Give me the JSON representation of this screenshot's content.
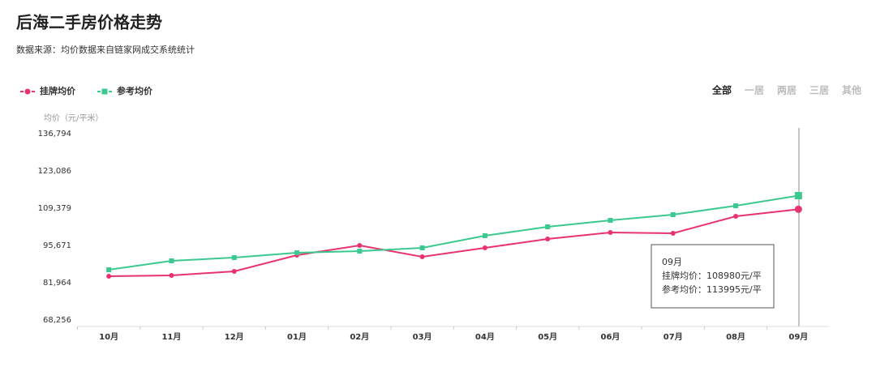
{
  "chart_data": {
    "type": "line",
    "title": "后海二手房价格走势",
    "subtitle": "数据来源：均价数据来自链家网成交系统统计",
    "y_label": "均价（元/平米）",
    "tabs": [
      "全部",
      "一居",
      "两居",
      "三居",
      "其他"
    ],
    "categories": [
      "10月",
      "11月",
      "12月",
      "01月",
      "02月",
      "03月",
      "04月",
      "05月",
      "06月",
      "07月",
      "08月",
      "09月"
    ],
    "series": [
      {
        "name": "挂牌均价",
        "color": "#e8336e",
        "values": [
          84350,
          84650,
          86140,
          92100,
          95670,
          91500,
          94780,
          98060,
          100440,
          100140,
          106400,
          108980
        ]
      },
      {
        "name": "参考均价",
        "color": "#3cc98f",
        "values": [
          86730,
          90010,
          91200,
          92990,
          93580,
          94780,
          99250,
          102530,
          104910,
          107000,
          110270,
          113995
        ]
      }
    ],
    "ylim": [
      68256,
      136794
    ],
    "yticks": [
      {
        "value": 68256,
        "label": "68,256"
      },
      {
        "value": 81964,
        "label": "81,964"
      },
      {
        "value": 95671,
        "label": "95,671"
      },
      {
        "value": 109379,
        "label": "109,379"
      },
      {
        "value": 123086,
        "label": "123,086"
      },
      {
        "value": 136794,
        "label": "136,794"
      }
    ],
    "tooltip": {
      "title": "09月",
      "lines": [
        "挂牌均价：108980元/平",
        "参考均价：113995元/平"
      ]
    }
  }
}
